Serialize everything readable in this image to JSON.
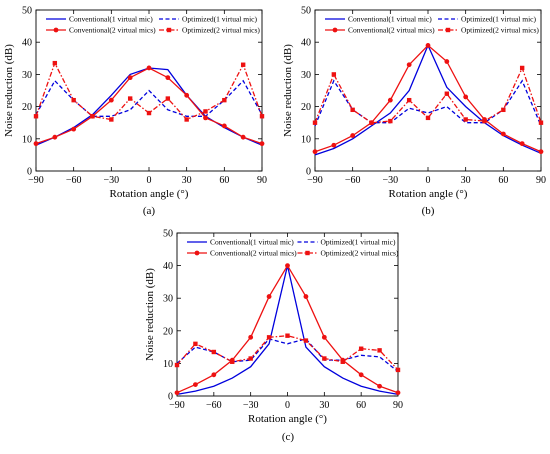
{
  "chart_data": [
    {
      "type": "line",
      "caption": "(a)",
      "xlabel": "Rotation angle (°)",
      "ylabel": "Noise reduction (dB)",
      "xlim": [
        -90,
        90
      ],
      "ylim": [
        0,
        50
      ],
      "xticks": [
        "−90",
        "−60",
        "−30",
        "0",
        "30",
        "60",
        "90"
      ],
      "yticks": [
        "0",
        "10",
        "20",
        "30",
        "40",
        "50"
      ],
      "x": [
        -90,
        -75,
        -60,
        -45,
        -30,
        -15,
        0,
        15,
        30,
        45,
        60,
        75,
        90
      ],
      "legend_position": "top",
      "series": [
        {
          "name": "Conventional(1 virtual mic)",
          "color": "#0000dd",
          "dash": "solid",
          "marker": "none",
          "values": [
            8,
            10.5,
            13.5,
            17.5,
            23.5,
            30,
            32,
            31.5,
            23.5,
            17,
            13.5,
            10.5,
            8
          ]
        },
        {
          "name": "Optimized(1 virtual mic)",
          "color": "#0000dd",
          "dash": "dashed",
          "marker": "none",
          "values": [
            17.5,
            28,
            22,
            17,
            17,
            19,
            25,
            19,
            17,
            17,
            22,
            28,
            17.5
          ]
        },
        {
          "name": "Conventional(2 virtual mics)",
          "color": "#ee1111",
          "dash": "solid",
          "marker": "circle",
          "values": [
            8.5,
            10.5,
            13,
            17,
            22,
            29,
            32,
            29,
            23.5,
            16.5,
            14,
            10.5,
            8.5
          ]
        },
        {
          "name": "Optimized(2 virtual mics)",
          "color": "#ee1111",
          "dash": "dashdot",
          "marker": "square",
          "values": [
            17,
            33.5,
            22,
            17,
            16,
            22.5,
            18,
            22.5,
            16,
            18.5,
            22,
            33,
            17
          ]
        }
      ]
    },
    {
      "type": "line",
      "caption": "(b)",
      "xlabel": "Rotation angle (°)",
      "ylabel": "Noise reduction (dB)",
      "xlim": [
        -90,
        90
      ],
      "ylim": [
        0,
        50
      ],
      "xticks": [
        "−90",
        "−60",
        "−30",
        "0",
        "30",
        "60",
        "90"
      ],
      "yticks": [
        "0",
        "10",
        "20",
        "30",
        "40",
        "50"
      ],
      "x": [
        -90,
        -75,
        -60,
        -45,
        -30,
        -15,
        0,
        15,
        30,
        45,
        60,
        75,
        90
      ],
      "legend_position": "top",
      "series": [
        {
          "name": "Conventional(1 virtual mic)",
          "color": "#0000dd",
          "dash": "solid",
          "marker": "none",
          "values": [
            5,
            7,
            10,
            14,
            18,
            25,
            39,
            26,
            20,
            15,
            11,
            8,
            5.5
          ]
        },
        {
          "name": "Optimized(1 virtual mic)",
          "color": "#0000dd",
          "dash": "dashed",
          "marker": "none",
          "values": [
            14,
            28,
            19,
            15,
            15,
            19.5,
            18,
            20,
            15,
            15,
            19,
            28,
            14
          ]
        },
        {
          "name": "Conventional(2 virtual mics)",
          "color": "#ee1111",
          "dash": "solid",
          "marker": "circle",
          "values": [
            6,
            8,
            11,
            15,
            22,
            33,
            39,
            34,
            23,
            16,
            11.5,
            8.5,
            6
          ]
        },
        {
          "name": "Optimized(2 virtual mics)",
          "color": "#ee1111",
          "dash": "dashdot",
          "marker": "square",
          "values": [
            15,
            30,
            19,
            15,
            15.5,
            22,
            16.5,
            24,
            16,
            15.5,
            19,
            32,
            15
          ]
        }
      ]
    },
    {
      "type": "line",
      "caption": "(c)",
      "xlabel": "Rotation angle (°)",
      "ylabel": "Noise reduction (dB)",
      "xlim": [
        -90,
        90
      ],
      "ylim": [
        0,
        50
      ],
      "xticks": [
        "−90",
        "−60",
        "−30",
        "0",
        "30",
        "60",
        "90"
      ],
      "yticks": [
        "0",
        "10",
        "20",
        "30",
        "40",
        "50"
      ],
      "x": [
        -90,
        -75,
        -60,
        -45,
        -30,
        -15,
        0,
        15,
        30,
        45,
        60,
        75,
        90
      ],
      "legend_position": "top",
      "series": [
        {
          "name": "Conventional(1 virtual mic)",
          "color": "#0000dd",
          "dash": "solid",
          "marker": "none",
          "values": [
            0.5,
            1.5,
            3,
            5.5,
            9,
            16,
            40,
            15,
            9,
            5.5,
            3,
            1.5,
            0.5
          ]
        },
        {
          "name": "Optimized(1 virtual mic)",
          "color": "#0000dd",
          "dash": "dashed",
          "marker": "none",
          "values": [
            10,
            15,
            13.5,
            10.5,
            11,
            17.5,
            16,
            17.5,
            11,
            11,
            12.5,
            12,
            7.5
          ]
        },
        {
          "name": "Conventional(2 virtual mics)",
          "color": "#ee1111",
          "dash": "solid",
          "marker": "circle",
          "values": [
            1,
            3.5,
            6.5,
            11,
            18,
            30.5,
            40,
            30.5,
            18,
            11,
            6.5,
            3,
            1
          ]
        },
        {
          "name": "Optimized(2 virtual mics)",
          "color": "#ee1111",
          "dash": "dashdot",
          "marker": "square",
          "values": [
            9.5,
            16,
            13.5,
            10.5,
            11.5,
            18,
            18.5,
            17,
            11.5,
            10.5,
            14.5,
            14,
            8
          ]
        }
      ]
    }
  ]
}
